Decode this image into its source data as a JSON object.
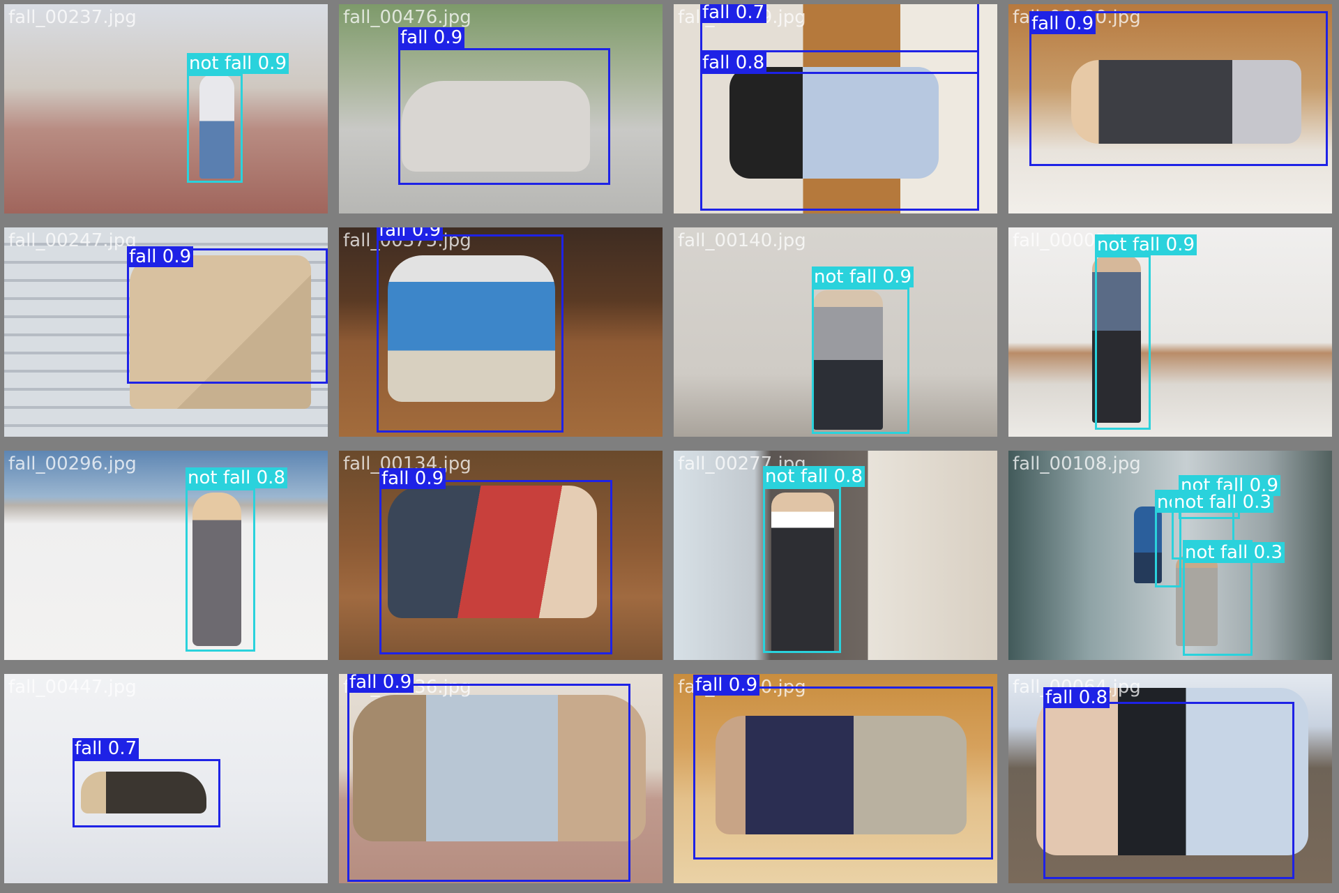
{
  "colors": {
    "fall": "#1e22e6",
    "not_fall": "#2ad2dc",
    "grid_bg": "#7f7f7f"
  },
  "tiles": [
    {
      "file": "fall_00237.jpg",
      "dets": [
        {
          "label": "not fall 0.9"
        }
      ]
    },
    {
      "file": "fall_00476.jpg",
      "dets": [
        {
          "label": "fall 0.9"
        }
      ]
    },
    {
      "file": "fall_00219.jpg",
      "dets": [
        {
          "label": "fall 0.7"
        },
        {
          "label": "fall 0.8"
        }
      ]
    },
    {
      "file": "fall_00190.jpg",
      "dets": [
        {
          "label": "fall 0.9"
        }
      ]
    },
    {
      "file": "fall_00247.jpg",
      "dets": [
        {
          "label": "fall 0.9"
        }
      ]
    },
    {
      "file": "fall_00375.jpg",
      "dets": [
        {
          "label": "fall 0.9"
        }
      ]
    },
    {
      "file": "fall_00140.jpg",
      "dets": [
        {
          "label": "not fall 0.9"
        }
      ]
    },
    {
      "file": "fall_00003.jpg",
      "dets": [
        {
          "label": "not fall 0.9"
        }
      ]
    },
    {
      "file": "fall_00296.jpg",
      "dets": [
        {
          "label": "not fall 0.8"
        }
      ]
    },
    {
      "file": "fall_00134.jpg",
      "dets": [
        {
          "label": "fall 0.9"
        }
      ]
    },
    {
      "file": "fall_00277.jpg",
      "dets": [
        {
          "label": "not fall 0.8"
        }
      ]
    },
    {
      "file": "fall_00108.jpg",
      "dets": [
        {
          "label": "not fall 0.9"
        },
        {
          "label": "not fall 0.3"
        },
        {
          "label": "not fall 0.3"
        },
        {
          "label": "not fall 0.3"
        }
      ]
    },
    {
      "file": "fall_00447.jpg",
      "dets": [
        {
          "label": "fall 0.7"
        }
      ]
    },
    {
      "file": "fall_00036.jpg",
      "dets": [
        {
          "label": "fall 0.9"
        }
      ]
    },
    {
      "file": "fall_00240.jpg",
      "dets": [
        {
          "label": "fall 0.9"
        }
      ]
    },
    {
      "file": "fall_00064.jpg",
      "dets": [
        {
          "label": "fall 0.8"
        }
      ]
    }
  ]
}
